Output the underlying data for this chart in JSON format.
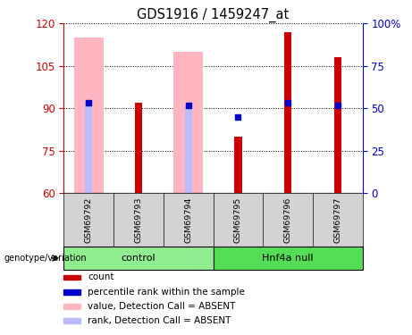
{
  "title": "GDS1916 / 1459247_at",
  "samples": [
    "GSM69792",
    "GSM69793",
    "GSM69794",
    "GSM69795",
    "GSM69796",
    "GSM69797"
  ],
  "ylim_left": [
    60,
    120
  ],
  "ylim_right": [
    0,
    100
  ],
  "yticks_left": [
    60,
    75,
    90,
    105,
    120
  ],
  "yticks_right": [
    0,
    25,
    50,
    75,
    100
  ],
  "ytick_labels_right": [
    "0",
    "25",
    "50",
    "75",
    "100%"
  ],
  "red_bars": [
    null,
    92,
    null,
    80,
    117,
    108
  ],
  "blue_squares": [
    92,
    null,
    91,
    87,
    92,
    91
  ],
  "pink_bars": [
    115,
    null,
    110,
    null,
    null,
    null
  ],
  "lavender_bars": [
    92,
    null,
    91,
    null,
    null,
    null
  ],
  "control_color": "#90EE90",
  "hnf4a_color": "#55DD55",
  "pink_color": "#FFB6C1",
  "lavender_color": "#BBBBFF",
  "red_color": "#CC0000",
  "blue_color": "#0000CC",
  "left_tick_color": "#CC0000",
  "right_tick_color": "#0000CC",
  "bg_color": "#FFFFFF",
  "legend_items": [
    {
      "label": "count",
      "color": "#CC0000"
    },
    {
      "label": "percentile rank within the sample",
      "color": "#0000CC"
    },
    {
      "label": "value, Detection Call = ABSENT",
      "color": "#FFB6C1"
    },
    {
      "label": "rank, Detection Call = ABSENT",
      "color": "#BBBBFF"
    }
  ]
}
